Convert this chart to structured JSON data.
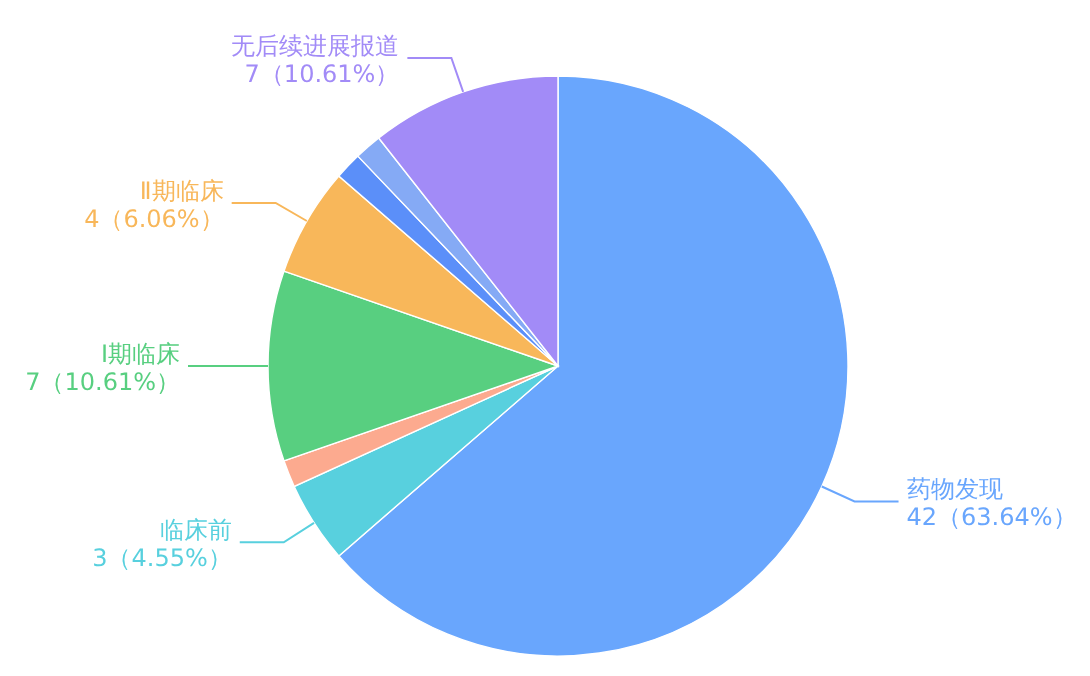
{
  "chart_data": {
    "type": "pie",
    "categories": [
      "药物发现",
      "临床前",
      null,
      "Ⅰ期临床",
      "Ⅱ期临床",
      null,
      null,
      "无后续进展报道"
    ],
    "values": [
      42,
      3,
      1,
      7,
      4,
      1,
      1,
      7
    ],
    "value_labels": [
      "42（63.64%）",
      "3（4.55%）",
      null,
      "7（10.61%）",
      "4（6.06%）",
      null,
      null,
      "7（10.61%）"
    ],
    "colors": [
      "#69a6fd",
      "#58d0de",
      "#fcaa8f",
      "#58cf80",
      "#f8b75a",
      "#5b8ff9",
      "#85aaf5",
      "#a28bf7"
    ]
  }
}
